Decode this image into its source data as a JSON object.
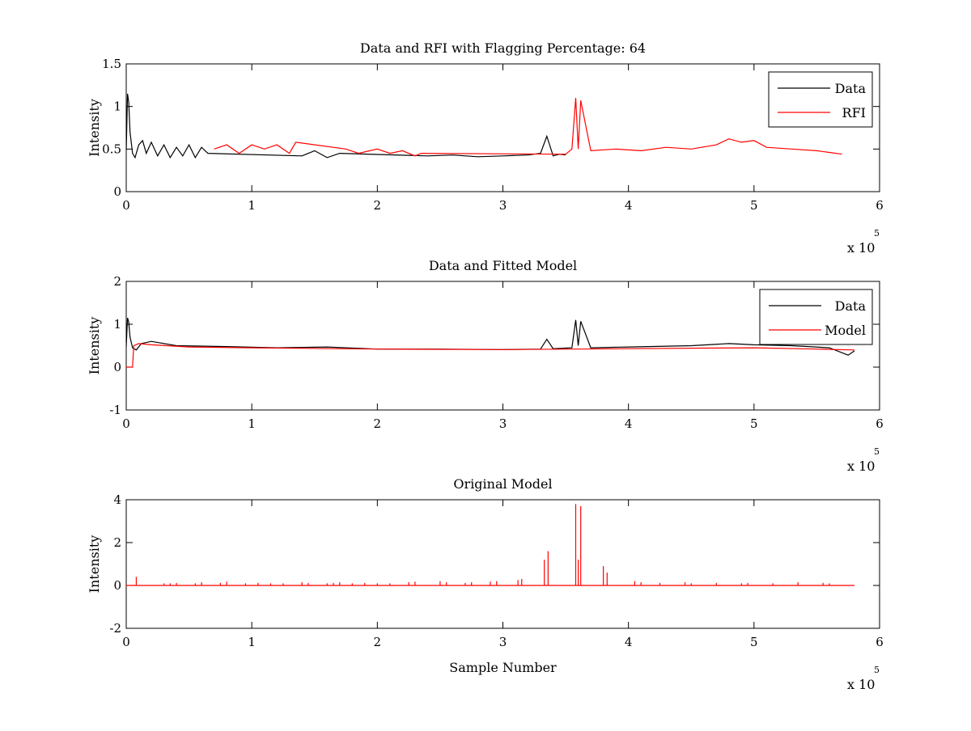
{
  "figure": {
    "background": "#ffffff"
  },
  "colors": {
    "data": "#000000",
    "rfi": "#ff0000",
    "model": "#ff0000"
  },
  "chart_data": [
    {
      "type": "line",
      "title": "Data and RFI with Flagging Percentage: 64",
      "xlabel": "",
      "ylabel": "Intensity",
      "xlim": [
        0,
        6
      ],
      "ylim": [
        0,
        1.5
      ],
      "xticks": [
        "0",
        "1",
        "2",
        "3",
        "4",
        "5",
        "6"
      ],
      "yticks": [
        "0",
        "0.5",
        "1",
        "1.5"
      ],
      "x_multiplier": {
        "base": "x 10",
        "exponent": "5"
      },
      "legend_position": "top-right",
      "legend": [
        {
          "label": "Data",
          "color": "#000000"
        },
        {
          "label": "RFI",
          "color": "#ff0000"
        }
      ],
      "series": [
        {
          "name": "Data",
          "color": "#000000",
          "x": [
            0,
            0.01,
            0.02,
            0.03,
            0.05,
            0.07,
            0.1,
            0.13,
            0.16,
            0.2,
            0.25,
            0.3,
            0.35,
            0.4,
            0.45,
            0.5,
            0.55,
            0.6,
            0.65,
            1.4,
            1.5,
            1.6,
            1.7,
            2.4,
            2.6,
            2.8,
            3.0,
            3.2,
            3.3,
            3.35,
            3.4,
            3.45,
            3.5
          ],
          "y": [
            0.48,
            1.15,
            1.05,
            0.7,
            0.45,
            0.4,
            0.55,
            0.6,
            0.45,
            0.58,
            0.42,
            0.55,
            0.4,
            0.52,
            0.42,
            0.55,
            0.4,
            0.52,
            0.45,
            0.42,
            0.48,
            0.4,
            0.45,
            0.42,
            0.43,
            0.41,
            0.42,
            0.43,
            0.45,
            0.65,
            0.42,
            0.44,
            0.43
          ]
        },
        {
          "name": "RFI",
          "color": "#ff0000",
          "x": [
            0.7,
            0.8,
            0.9,
            1.0,
            1.1,
            1.2,
            1.3,
            1.35,
            1.75,
            1.85,
            2.0,
            2.1,
            2.2,
            2.3,
            2.35,
            3.5,
            3.55,
            3.58,
            3.6,
            3.62,
            3.7,
            3.9,
            4.1,
            4.3,
            4.5,
            4.7,
            4.8,
            4.9,
            5.0,
            5.1,
            5.3,
            5.5,
            5.6,
            5.7
          ],
          "y": [
            0.5,
            0.55,
            0.45,
            0.55,
            0.5,
            0.55,
            0.45,
            0.58,
            0.5,
            0.45,
            0.5,
            0.45,
            0.48,
            0.42,
            0.45,
            0.44,
            0.5,
            1.1,
            0.5,
            1.07,
            0.48,
            0.5,
            0.48,
            0.52,
            0.5,
            0.55,
            0.62,
            0.58,
            0.6,
            0.52,
            0.5,
            0.48,
            0.46,
            0.44
          ]
        }
      ]
    },
    {
      "type": "line",
      "title": "Data and Fitted Model",
      "xlabel": "",
      "ylabel": "Intensity",
      "xlim": [
        0,
        6
      ],
      "ylim": [
        -1,
        2
      ],
      "xticks": [
        "0",
        "1",
        "2",
        "3",
        "4",
        "5",
        "6"
      ],
      "yticks": [
        "-1",
        "0",
        "1",
        "2"
      ],
      "x_multiplier": {
        "base": "x 10",
        "exponent": "5"
      },
      "legend_position": "top-right",
      "legend": [
        {
          "label": "Data",
          "color": "#000000"
        },
        {
          "label": "Model",
          "color": "#ff0000"
        }
      ],
      "series": [
        {
          "name": "Data",
          "color": "#000000",
          "x": [
            0,
            0.01,
            0.02,
            0.03,
            0.05,
            0.08,
            0.12,
            0.2,
            0.4,
            0.8,
            1.2,
            1.6,
            2.0,
            2.5,
            3.0,
            3.3,
            3.35,
            3.4,
            3.55,
            3.58,
            3.6,
            3.62,
            3.7,
            4.0,
            4.5,
            4.8,
            5.0,
            5.3,
            5.6,
            5.75,
            5.8
          ],
          "y": [
            0.48,
            1.15,
            1.05,
            0.7,
            0.45,
            0.4,
            0.55,
            0.6,
            0.5,
            0.48,
            0.45,
            0.47,
            0.42,
            0.42,
            0.41,
            0.42,
            0.65,
            0.43,
            0.45,
            1.1,
            0.5,
            1.07,
            0.45,
            0.47,
            0.5,
            0.55,
            0.52,
            0.5,
            0.45,
            0.28,
            0.38
          ]
        },
        {
          "name": "Model",
          "color": "#ff0000",
          "x": [
            0,
            0.05,
            0.06,
            0.1,
            0.2,
            0.5,
            1.0,
            2.0,
            3.0,
            4.0,
            5.0,
            5.5,
            5.8
          ],
          "y": [
            0,
            0,
            0.5,
            0.55,
            0.52,
            0.47,
            0.45,
            0.42,
            0.41,
            0.43,
            0.45,
            0.42,
            0.4
          ]
        }
      ]
    },
    {
      "type": "line",
      "title": "Original Model",
      "xlabel": "Sample Number",
      "ylabel": "Intensity",
      "xlim": [
        0,
        6
      ],
      "ylim": [
        -2,
        4
      ],
      "xticks": [
        "0",
        "1",
        "2",
        "3",
        "4",
        "5",
        "6"
      ],
      "yticks": [
        "-2",
        "0",
        "2",
        "4"
      ],
      "x_multiplier": {
        "base": "x 10",
        "exponent": "5"
      },
      "series": [
        {
          "color": "#ff0000",
          "baseline": 0,
          "x_end": 5.8,
          "spikes_x": [
            0.08,
            0.3,
            0.35,
            0.4,
            0.55,
            0.6,
            0.75,
            0.8,
            0.95,
            1.05,
            1.15,
            1.25,
            1.4,
            1.45,
            1.6,
            1.65,
            1.7,
            1.8,
            1.9,
            2.0,
            2.1,
            2.25,
            2.3,
            2.5,
            2.55,
            2.7,
            2.75,
            2.9,
            2.95,
            3.12,
            3.15,
            3.33,
            3.36,
            3.58,
            3.6,
            3.62,
            3.8,
            3.83,
            4.05,
            4.1,
            4.25,
            4.45,
            4.5,
            4.7,
            4.9,
            4.95,
            5.15,
            5.35,
            5.55,
            5.6
          ],
          "spikes_y": [
            0.4,
            0.1,
            0.1,
            0.12,
            0.1,
            0.15,
            0.12,
            0.18,
            0.1,
            0.12,
            0.1,
            0.1,
            0.15,
            0.12,
            0.1,
            0.12,
            0.15,
            0.1,
            0.12,
            0.1,
            0.1,
            0.15,
            0.18,
            0.2,
            0.15,
            0.12,
            0.15,
            0.18,
            0.2,
            0.25,
            0.3,
            1.2,
            1.6,
            3.8,
            1.2,
            3.7,
            0.9,
            0.6,
            0.2,
            0.15,
            0.12,
            0.15,
            0.1,
            0.12,
            0.1,
            0.12,
            0.1,
            0.15,
            0.12,
            0.1
          ]
        }
      ]
    }
  ]
}
